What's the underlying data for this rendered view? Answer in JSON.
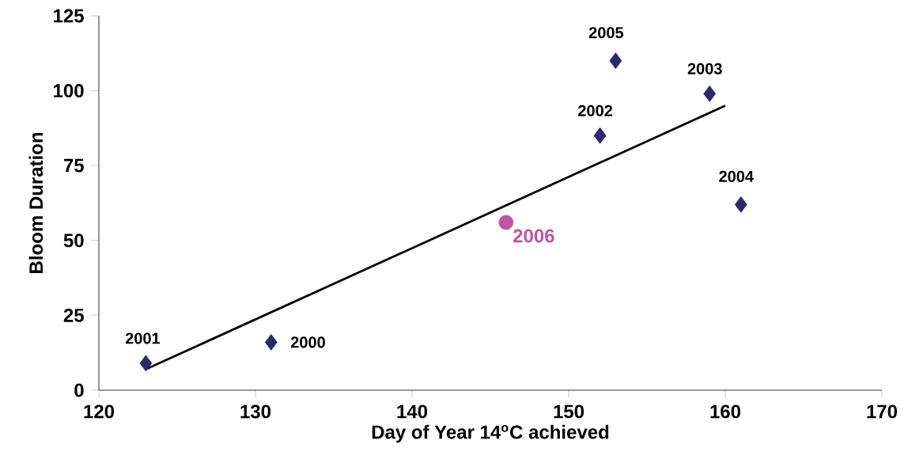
{
  "chart_data": {
    "type": "scatter",
    "xlabel": "Day of Year 14$^{o}$C achieved",
    "ylabel": "Bloom Duration",
    "xlim": [
      120,
      170
    ],
    "xticks": [
      120,
      130,
      140,
      150,
      160,
      170
    ],
    "ylim": [
      0,
      125
    ],
    "yticks": [
      0,
      25,
      50,
      75,
      100,
      125
    ],
    "grid": false,
    "series": [
      {
        "color": "#2b2a6b",
        "marker": "diamond",
        "x": [
          131,
          123,
          152,
          159,
          161,
          153
        ],
        "values": [
          16,
          9,
          85,
          99,
          62,
          110
        ]
      },
      {
        "name": "2006",
        "color": "#c054a4",
        "marker": "circle",
        "x": [
          146
        ],
        "values": [
          56
        ]
      },
      {
        "type": "line",
        "color": "#000000",
        "marker": "none",
        "line_style": "solid",
        "x": [
          123,
          160
        ],
        "values": [
          7,
          95
        ]
      }
    ],
    "annotations": [
      {
        "text": "2000",
        "x": 131,
        "y": 16
      },
      {
        "text": "2001",
        "x": 123,
        "y": 9
      },
      {
        "text": "2002",
        "x": 152,
        "y": 85
      },
      {
        "text": "2003",
        "x": 159,
        "y": 99
      },
      {
        "text": "2004",
        "x": 161,
        "y": 62
      },
      {
        "text": "2005",
        "x": 153,
        "y": 110
      }
    ]
  }
}
